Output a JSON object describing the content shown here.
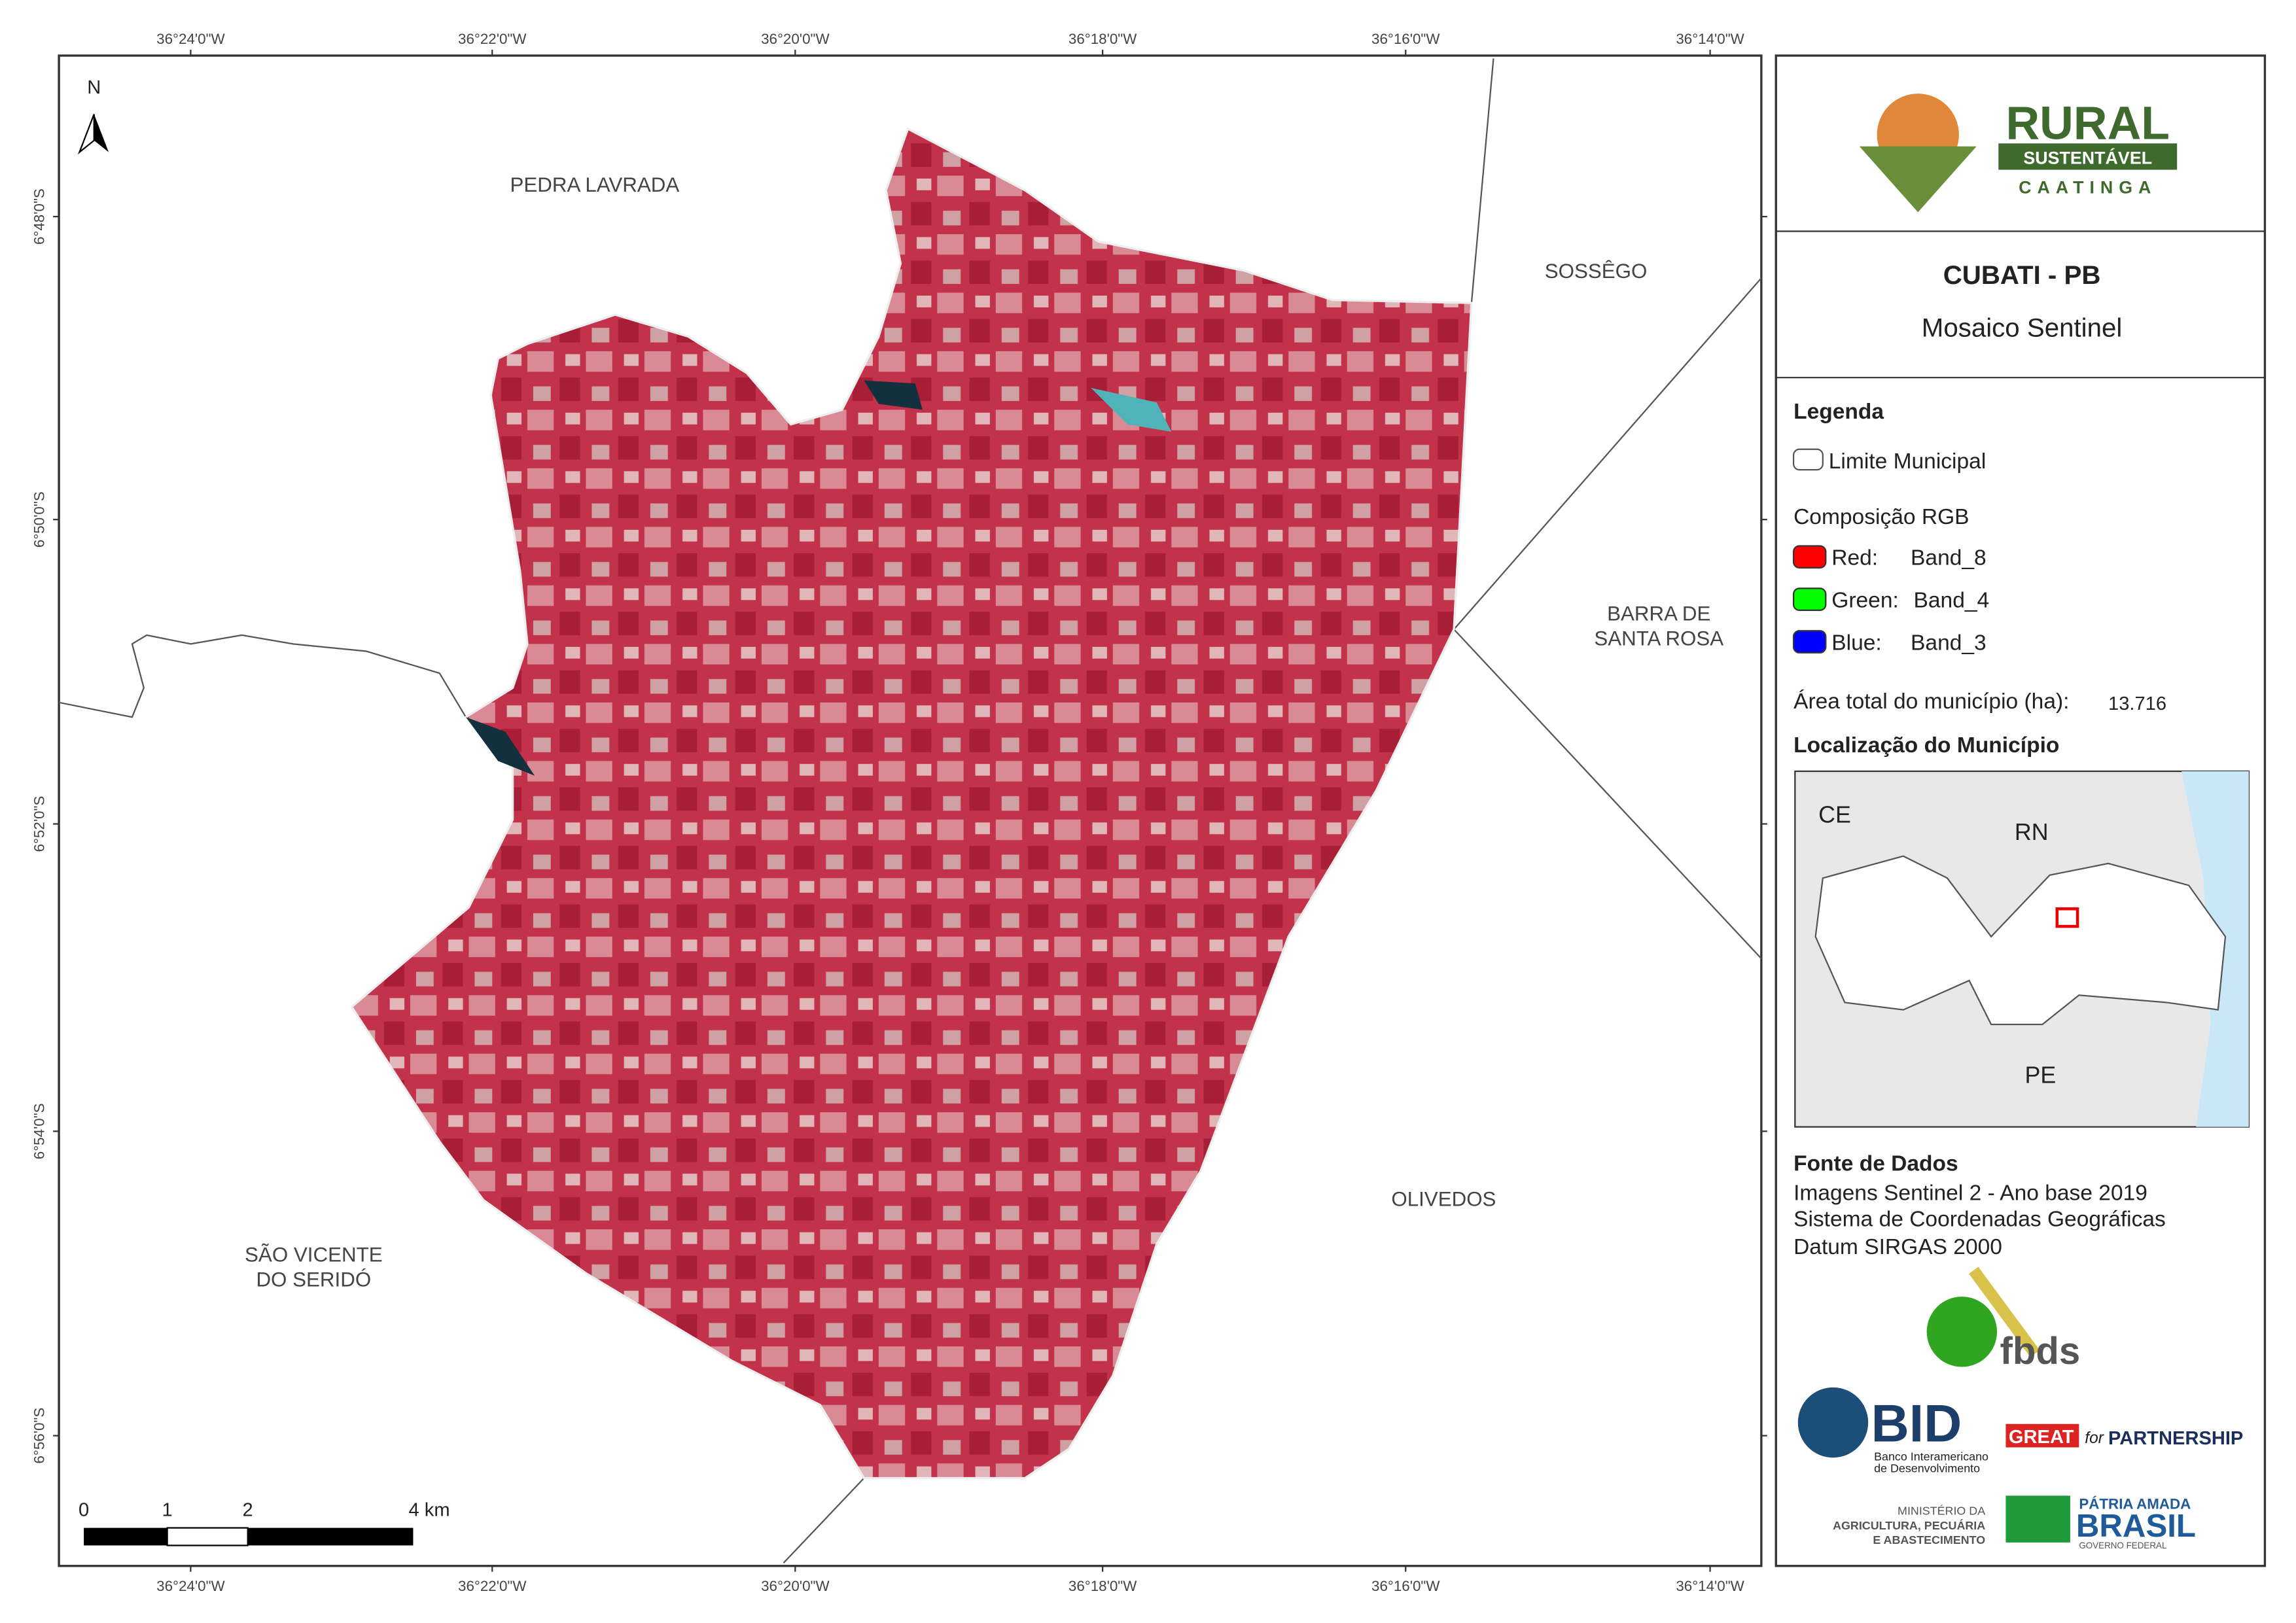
{
  "map": {
    "longitudes": [
      "36°24'0\"W",
      "36°22'0\"W",
      "36°20'0\"W",
      "36°18'0\"W",
      "36°16'0\"W",
      "36°14'0\"W"
    ],
    "latitudes": [
      "6°48'0\"S",
      "6°50'0\"S",
      "6°52'0\"S",
      "6°54'0\"S",
      "6°56'0\"S"
    ],
    "north": "N",
    "places": [
      "PEDRA LAVRADA",
      "SOSSÊGO",
      "BARRA DE",
      "SANTA ROSA",
      "SÃO VICENTE",
      "DO SERIDÓ",
      "OLIVEDOS"
    ],
    "scale": [
      "0",
      "1",
      "2",
      "4 km"
    ]
  },
  "panel": {
    "logo": [
      "RURAL",
      "SUSTENTÁVEL",
      "CAATINGA"
    ],
    "title": "CUBATI - PB",
    "subtitle": "Mosaico Sentinel",
    "legend_title": "Legenda",
    "boundary": "Limite Municipal",
    "composition": "Composição RGB",
    "bands": [
      [
        "Red:",
        "Band_8"
      ],
      [
        "Green:",
        "Band_4"
      ],
      [
        "Blue:",
        "Band_3"
      ]
    ],
    "area_label": "Área total do município (ha):",
    "area_value": "13.716",
    "location_title": "Localização do Município",
    "states": [
      "CE",
      "RN",
      "PE"
    ],
    "sources_title": "Fonte de Dados",
    "sources": [
      "Imagens Sentinel 2 - Ano base 2019",
      "Sistema de Coordenadas Geográficas",
      "Datum SIRGAS 2000"
    ],
    "partners": [
      "fbds",
      "BID",
      "Banco Interamericano",
      "de Desenvolvimento",
      "GREAT",
      "for",
      "PARTNERSHIP",
      "MINISTÉRIO DA",
      "AGRICULTURA, PECUÁRIA",
      "E ABASTECIMENTO",
      "PÁTRIA AMADA",
      "BRASIL",
      "GOVERNO FEDERAL"
    ]
  }
}
